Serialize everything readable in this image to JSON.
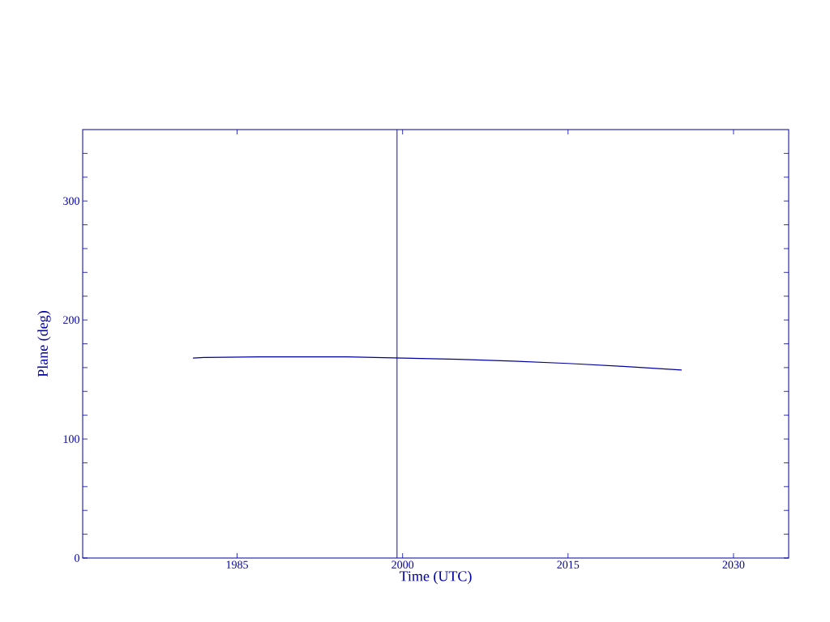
{
  "chart_data": {
    "type": "line",
    "xlabel": "Time (UTC)",
    "ylabel": "Plane (deg)",
    "color": "#0000a0",
    "x": [
      1981,
      1982,
      1987,
      1995,
      2000,
      2005,
      2010,
      2015,
      2020,
      2025.3
    ],
    "values": [
      168,
      168.5,
      169,
      169,
      168,
      167,
      165.5,
      163.5,
      161,
      158
    ],
    "xlim": [
      1971,
      2035
    ],
    "xticks": [
      1985,
      2000,
      2015,
      2030
    ],
    "ylim": [
      0,
      360
    ],
    "yticks": [
      0,
      {
        "value": 20,
        "label": null
      },
      {
        "value": 40,
        "label": null
      },
      {
        "value": 60,
        "label": null
      },
      {
        "value": 80,
        "label": null
      },
      100,
      {
        "value": 120,
        "label": null
      },
      {
        "value": 140,
        "label": null
      },
      {
        "value": 160,
        "label": null
      },
      {
        "value": 180,
        "label": null
      },
      200,
      {
        "value": 220,
        "label": null
      },
      {
        "value": 240,
        "label": null
      },
      {
        "value": 260,
        "label": null
      },
      {
        "value": 280,
        "label": null
      },
      300,
      {
        "value": 320,
        "label": null
      },
      {
        "value": 340,
        "label": null
      }
    ],
    "ref_lines": [
      {
        "axis": "x",
        "value": 1999.5
      }
    ]
  }
}
